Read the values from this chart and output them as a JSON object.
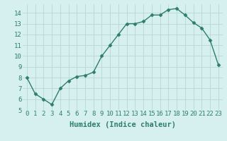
{
  "x": [
    0,
    1,
    2,
    3,
    4,
    5,
    6,
    7,
    8,
    9,
    10,
    11,
    12,
    13,
    14,
    15,
    16,
    17,
    18,
    19,
    20,
    21,
    22,
    23
  ],
  "y": [
    8.0,
    6.5,
    6.0,
    5.5,
    7.0,
    7.7,
    8.1,
    8.2,
    8.5,
    10.0,
    11.0,
    12.0,
    13.0,
    13.0,
    13.2,
    13.8,
    13.8,
    14.3,
    14.4,
    13.8,
    13.1,
    12.6,
    11.5,
    9.2
  ],
  "line_color": "#2e7d6e",
  "marker": "D",
  "marker_size": 2.5,
  "bg_color": "#d6f0ef",
  "grid_color": "#b8d8d4",
  "xlabel": "Humidex (Indice chaleur)",
  "xlim": [
    -0.5,
    23.5
  ],
  "ylim": [
    5,
    14.8
  ],
  "yticks": [
    5,
    6,
    7,
    8,
    9,
    10,
    11,
    12,
    13,
    14
  ],
  "xticks": [
    0,
    1,
    2,
    3,
    4,
    5,
    6,
    7,
    8,
    9,
    10,
    11,
    12,
    13,
    14,
    15,
    16,
    17,
    18,
    19,
    20,
    21,
    22,
    23
  ],
  "xlabel_fontsize": 7.5,
  "tick_fontsize": 6.5,
  "line_width": 1.0
}
